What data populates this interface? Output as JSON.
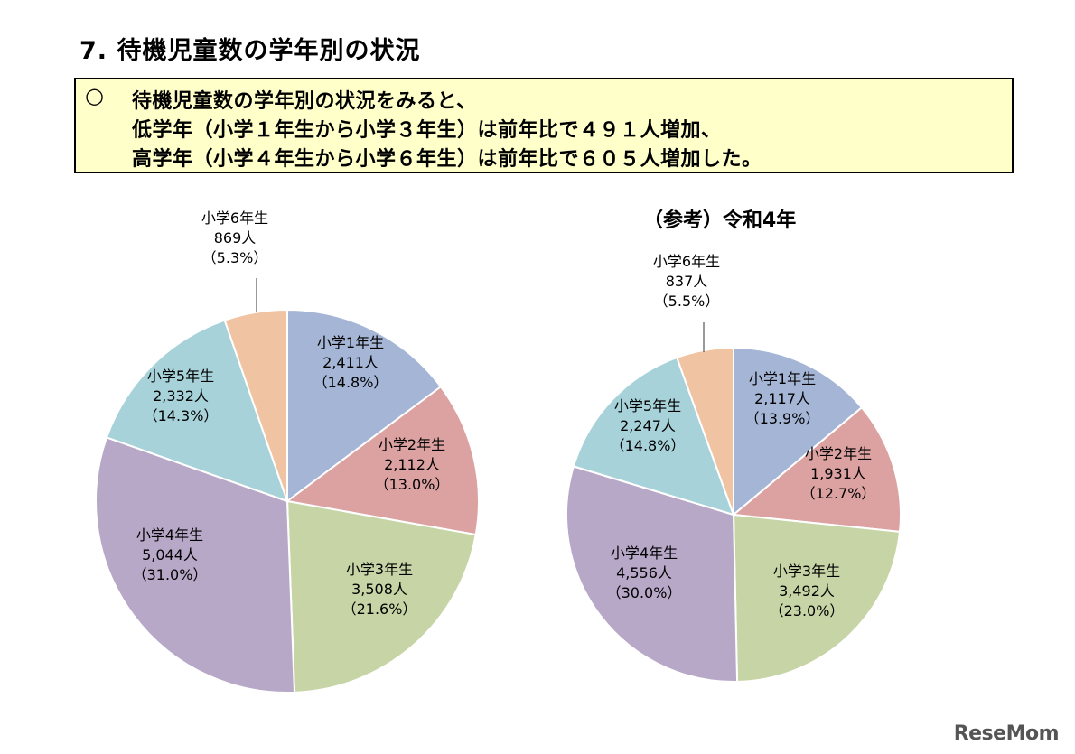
{
  "page": {
    "title": "7. 待機児童数の学年別の状況",
    "summary": {
      "bullet": "○",
      "lines": [
        "待機児童数の学年別の状況をみると、",
        "低学年（小学１年生から小学３年生）は前年比で４９１人増加、",
        "高学年（小学４年生から小学６年生）は前年比で６０５人増加した。"
      ]
    },
    "logo": "ReseMom"
  },
  "chart_data": [
    {
      "type": "pie",
      "title": "",
      "slices": [
        {
          "label": "小学1年生",
          "count": "2,411人",
          "pct": "（14.8%）",
          "value": 14.8,
          "color": "#a5b5d5"
        },
        {
          "label": "小学2年生",
          "count": "2,112人",
          "pct": "（13.0%）",
          "value": 13.0,
          "color": "#dca2a2"
        },
        {
          "label": "小学3年生",
          "count": "3,508人",
          "pct": "（21.6%）",
          "value": 21.6,
          "color": "#c7d5a6"
        },
        {
          "label": "小学4年生",
          "count": "5,044人",
          "pct": "（31.0%）",
          "value": 31.0,
          "color": "#b8a8c8"
        },
        {
          "label": "小学5年生",
          "count": "2,332人",
          "pct": "（14.3%）",
          "value": 14.3,
          "color": "#a8d2d9"
        },
        {
          "label": "小学6年生",
          "count": "869人",
          "pct": "（5.3%）",
          "value": 5.3,
          "color": "#f0c3a2"
        }
      ]
    },
    {
      "type": "pie",
      "title": "（参考）令和4年",
      "slices": [
        {
          "label": "小学1年生",
          "count": "2,117人",
          "pct": "（13.9%）",
          "value": 13.9,
          "color": "#a5b5d5"
        },
        {
          "label": "小学2年生",
          "count": "1,931人",
          "pct": "（12.7%）",
          "value": 12.7,
          "color": "#dca2a2"
        },
        {
          "label": "小学3年生",
          "count": "3,492人",
          "pct": "（23.0%）",
          "value": 23.0,
          "color": "#c7d5a6"
        },
        {
          "label": "小学4年生",
          "count": "4,556人",
          "pct": "（30.0%）",
          "value": 30.0,
          "color": "#b8a8c8"
        },
        {
          "label": "小学5年生",
          "count": "2,247人",
          "pct": "（14.8%）",
          "value": 14.8,
          "color": "#a8d2d9"
        },
        {
          "label": "小学6年生",
          "count": "837人",
          "pct": "（5.5%）",
          "value": 5.5,
          "color": "#f0c3a2"
        }
      ]
    }
  ]
}
